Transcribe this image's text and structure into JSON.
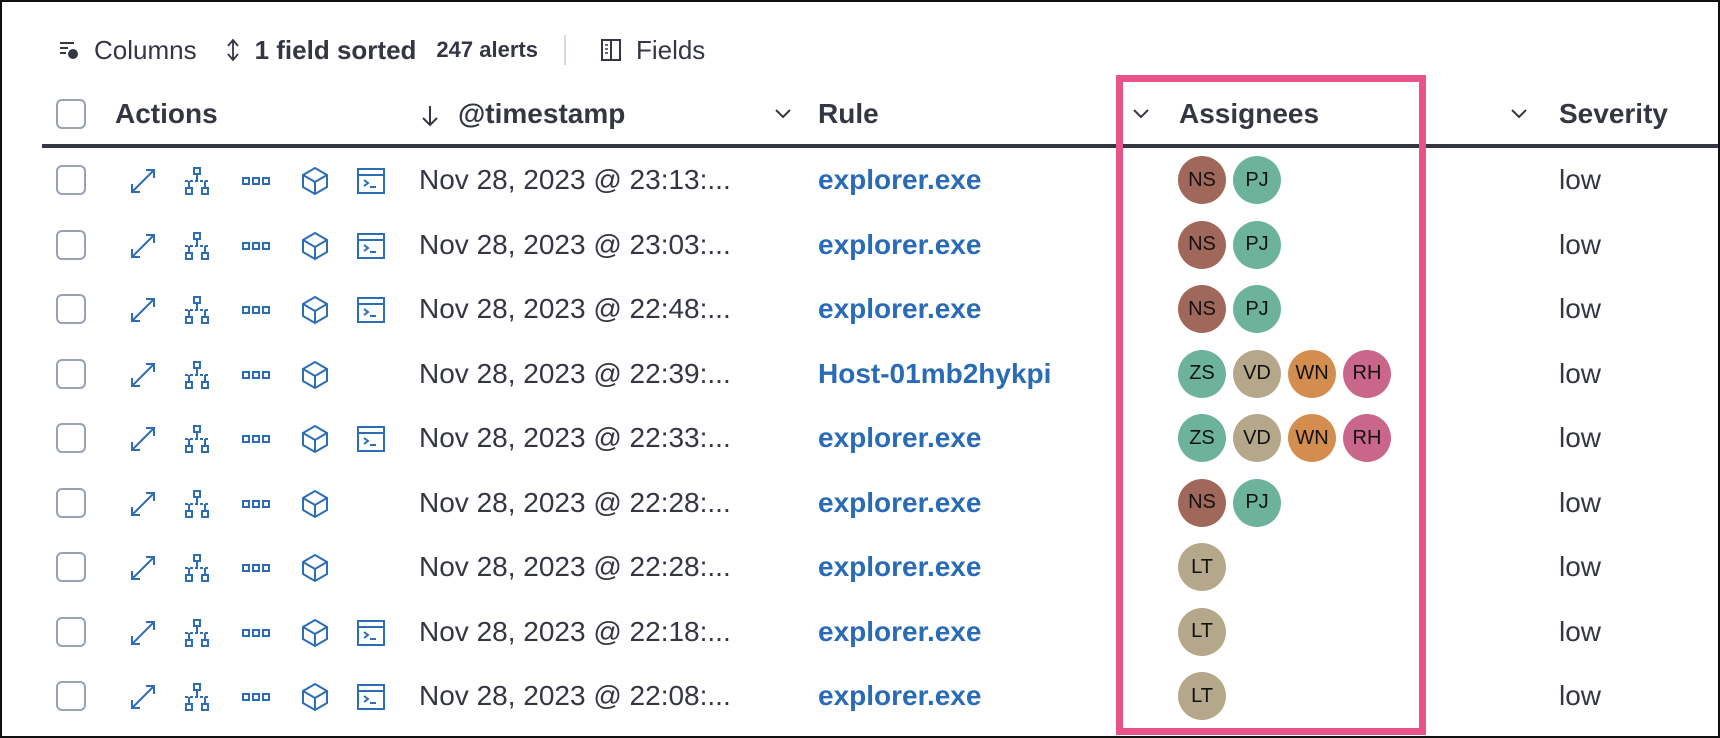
{
  "toolbar": {
    "columns_label": "Columns",
    "sorted_label": "1 field sorted",
    "alerts_count": "247 alerts",
    "fields_label": "Fields"
  },
  "headers": {
    "actions": "Actions",
    "timestamp": "@timestamp",
    "rule": "Rule",
    "assignees": "Assignees",
    "severity": "Severity"
  },
  "colors": {
    "link": "#2a6bb8",
    "highlight": "#e9538a",
    "NS": "#a0685a",
    "PJ": "#6db39b",
    "ZS": "#6db39b",
    "VD": "#b5a78a",
    "WN": "#d38e4f",
    "RH": "#c9668a",
    "LT": "#b5a78a"
  },
  "rows": [
    {
      "timestamp": "Nov 28, 2023 @ 23:13:...",
      "rule": "explorer.exe",
      "assignees": [
        "NS",
        "PJ"
      ],
      "severity": "low",
      "terminal": true
    },
    {
      "timestamp": "Nov 28, 2023 @ 23:03:...",
      "rule": "explorer.exe",
      "assignees": [
        "NS",
        "PJ"
      ],
      "severity": "low",
      "terminal": true
    },
    {
      "timestamp": "Nov 28, 2023 @ 22:48:...",
      "rule": "explorer.exe",
      "assignees": [
        "NS",
        "PJ"
      ],
      "severity": "low",
      "terminal": true
    },
    {
      "timestamp": "Nov 28, 2023 @ 22:39:...",
      "rule": "Host-01mb2hykpi",
      "assignees": [
        "ZS",
        "VD",
        "WN",
        "RH"
      ],
      "severity": "low",
      "terminal": false
    },
    {
      "timestamp": "Nov 28, 2023 @ 22:33:...",
      "rule": "explorer.exe",
      "assignees": [
        "ZS",
        "VD",
        "WN",
        "RH"
      ],
      "severity": "low",
      "terminal": true
    },
    {
      "timestamp": "Nov 28, 2023 @ 22:28:...",
      "rule": "explorer.exe",
      "assignees": [
        "NS",
        "PJ"
      ],
      "severity": "low",
      "terminal": false
    },
    {
      "timestamp": "Nov 28, 2023 @ 22:28:...",
      "rule": "explorer.exe",
      "assignees": [
        "LT"
      ],
      "severity": "low",
      "terminal": false
    },
    {
      "timestamp": "Nov 28, 2023 @ 22:18:...",
      "rule": "explorer.exe",
      "assignees": [
        "LT"
      ],
      "severity": "low",
      "terminal": true
    },
    {
      "timestamp": "Nov 28, 2023 @ 22:08:...",
      "rule": "explorer.exe",
      "assignees": [
        "LT"
      ],
      "severity": "low",
      "terminal": true
    }
  ]
}
